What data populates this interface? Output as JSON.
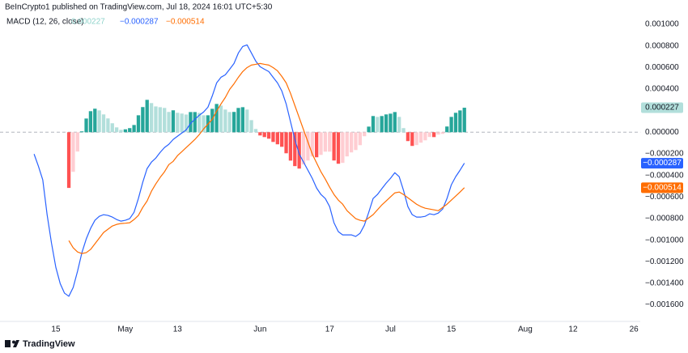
{
  "header": "BeInCrypto1 published on TradingView.com, Jul 18, 2024 16:01 UTC+5:30",
  "branding": "TradingView",
  "chart_data": {
    "type": "macd",
    "title": "MACD (12, 26, close)",
    "categories": [
      null,
      null,
      null,
      null,
      null,
      null,
      null,
      null,
      null,
      null,
      null,
      "15",
      null,
      null,
      null,
      null,
      null,
      null,
      null,
      null,
      null,
      null,
      null,
      null,
      null,
      null,
      null,
      "May",
      null,
      null,
      null,
      null,
      null,
      null,
      null,
      null,
      null,
      null,
      null,
      "13",
      null,
      null,
      null,
      null,
      null,
      null,
      null,
      null,
      null,
      null,
      null,
      null,
      null,
      null,
      null,
      null,
      null,
      null,
      "Jun",
      null,
      null,
      null,
      null,
      null,
      null,
      null,
      null,
      null,
      null,
      null,
      null,
      null,
      null,
      null,
      "17",
      null,
      null,
      null,
      null,
      null,
      null,
      null,
      null,
      null,
      null,
      null,
      null,
      null,
      "Jul",
      null,
      null,
      null,
      null,
      null,
      null,
      null,
      null,
      null,
      null,
      null,
      null,
      null,
      "15",
      null,
      null,
      null,
      null,
      null,
      null,
      null,
      null,
      null,
      null,
      null,
      null,
      null,
      null,
      null,
      null,
      "Aug",
      null,
      null,
      null,
      null,
      null,
      null,
      null,
      null,
      null,
      null,
      "12",
      null,
      null,
      null,
      null,
      null,
      null,
      null,
      null,
      null,
      null,
      null,
      null,
      null,
      "26",
      null
    ],
    "ylim": [
      -0.001738,
      0.001075
    ],
    "yticks": [
      {
        "value": 0.001,
        "label": "0.001000"
      },
      {
        "value": 0.0008,
        "label": "0.000800"
      },
      {
        "value": 0.0006,
        "label": "0.000600"
      },
      {
        "value": 0.0004,
        "label": "0.000400"
      },
      {
        "value": 0.0002,
        "label": "0.000200"
      },
      {
        "value": 0,
        "label": "0.000000"
      },
      {
        "value": -0.0002,
        "label": "−0.000200"
      },
      {
        "value": -0.0004,
        "label": "−0.000400"
      },
      {
        "value": -0.0006,
        "label": "−0.000600"
      },
      {
        "value": -0.0008,
        "label": "−0.000800"
      },
      {
        "value": -0.001,
        "label": "−0.001000"
      },
      {
        "value": -0.0012,
        "label": "−0.001200"
      },
      {
        "value": -0.0014,
        "label": "−0.001400"
      },
      {
        "value": -0.0016,
        "label": "−0.001600"
      }
    ],
    "grid": false,
    "series": [
      {
        "type": "bar",
        "colors": {
          "rise_above": "#26a69a",
          "fall_above": "#b2dfdb",
          "fall_below": "#ff5252",
          "rise_below": "#ffcdd2"
        },
        "values": [
          null,
          null,
          null,
          null,
          null,
          null,
          null,
          null,
          null,
          null,
          null,
          null,
          null,
          null,
          -0.000516,
          -0.000367,
          -0.000179,
          8e-06,
          0.000127,
          0.000195,
          0.000218,
          0.000202,
          0.000165,
          0.000128,
          8.3e-05,
          4.5e-05,
          2.2e-05,
          2.7e-05,
          3.8e-05,
          6.7e-05,
          0.000157,
          0.000233,
          0.0003,
          0.00027,
          0.000239,
          0.000232,
          0.000225,
          0.000188,
          0.000203,
          0.00018,
          0.000173,
          0.000164,
          0.000187,
          0.000187,
          0.000179,
          0.000157,
          0.000157,
          0.000217,
          0.000262,
          0.000247,
          0.00021,
          0.000187,
          0.000188,
          0.000225,
          0.000232,
          0.00021,
          0.000112,
          3e-05,
          -3e-05,
          -4.5e-05,
          -6e-05,
          -9e-05,
          -0.000112,
          -0.000135,
          -0.000195,
          -0.000263,
          -0.000314,
          -0.000337,
          -0.000299,
          -0.000262,
          -0.000225,
          -0.000232,
          -0.00021,
          -0.00018,
          -0.00018,
          -0.000262,
          -0.000292,
          -0.000284,
          -0.000224,
          -0.000187,
          -0.000165,
          -0.00012,
          -3.7e-05,
          5.2e-05,
          0.00015,
          0.000142,
          0.00015,
          0.000165,
          0.000172,
          0.000187,
          0.000142,
          3.8e-05,
          -8.2e-05,
          -0.000127,
          -0.000119,
          -9.7e-05,
          -7.5e-05,
          -4.4e-05,
          -4.5e-05,
          -2.2e-05,
          -1.5e-05,
          5.3e-05,
          0.000142,
          0.00018,
          0.000202,
          0.000227,
          null,
          null,
          null,
          null,
          null,
          null,
          null,
          null,
          null,
          null,
          null,
          null,
          null,
          null,
          null,
          null,
          null,
          null,
          null,
          null,
          null,
          null,
          null,
          null,
          null,
          null,
          null,
          null,
          null,
          null,
          null,
          null,
          null,
          null,
          null,
          null,
          null,
          null,
          null,
          null
        ]
      },
      {
        "type": "line",
        "color": "#2962ff",
        "values": [
          null,
          null,
          null,
          null,
          null,
          null,
          -0.000202,
          -0.000315,
          -0.000442,
          -0.000764,
          -0.001026,
          -0.001251,
          -0.001401,
          -0.001491,
          -0.00152,
          -0.001438,
          -0.001288,
          -0.001116,
          -0.000989,
          -0.000891,
          -0.000816,
          -0.000779,
          -0.000764,
          -0.000771,
          -0.000786,
          -0.000809,
          -0.000824,
          -0.000816,
          -0.000801,
          -0.000742,
          -0.000614,
          -0.000464,
          -0.000337,
          -0.000277,
          -0.00024,
          -0.000187,
          -0.000142,
          -0.000112,
          -6.7e-05,
          -3.7e-05,
          -7e-06,
          2.2e-05,
          8.2e-05,
          0.00012,
          0.000157,
          0.000187,
          0.000232,
          0.000337,
          0.000457,
          0.000509,
          0.000532,
          0.000584,
          0.000637,
          0.000734,
          0.000794,
          0.000809,
          0.000734,
          0.000659,
          0.000607,
          0.000584,
          0.000562,
          0.000509,
          0.000457,
          0.000382,
          0.000262,
          9.7e-05,
          -6.7e-05,
          -0.000202,
          -0.000277,
          -0.000352,
          -0.000427,
          -0.000517,
          -0.000577,
          -0.000614,
          -0.000689,
          -0.000839,
          -0.000921,
          -0.000951,
          -0.000951,
          -0.000951,
          -0.000966,
          -0.000936,
          -0.000861,
          -0.000742,
          -0.000614,
          -0.000577,
          -0.000524,
          -0.000472,
          -0.000427,
          -0.000375,
          -0.000412,
          -0.000539,
          -0.000689,
          -0.000764,
          -0.000786,
          -0.000786,
          -0.000779,
          -0.000756,
          -0.000764,
          -0.000749,
          -0.000712,
          -0.000614,
          -0.000487,
          -0.000412,
          -0.000352,
          -0.000287,
          null,
          null,
          null,
          null,
          null,
          null,
          null,
          null,
          null,
          null,
          null,
          null,
          null,
          null,
          null,
          null,
          null,
          null,
          null,
          null,
          null,
          null,
          null,
          null,
          null,
          null,
          null,
          null,
          null,
          null,
          null,
          null,
          null,
          null,
          null,
          null,
          null,
          null,
          null,
          null
        ],
        "value_labels": {
          "105": "−0.000287"
        }
      },
      {
        "type": "line",
        "color": "#ff6d00",
        "values": [
          null,
          null,
          null,
          null,
          null,
          null,
          null,
          null,
          null,
          null,
          null,
          null,
          null,
          null,
          -0.001004,
          -0.001071,
          -0.001109,
          -0.001124,
          -0.001116,
          -0.001086,
          -0.001034,
          -0.000981,
          -0.000929,
          -0.000899,
          -0.000869,
          -0.000854,
          -0.000846,
          -0.000843,
          -0.000839,
          -0.000809,
          -0.000771,
          -0.000697,
          -0.000637,
          -0.000547,
          -0.000479,
          -0.000419,
          -0.000367,
          -0.0003,
          -0.00027,
          -0.000217,
          -0.00018,
          -0.000142,
          -0.000105,
          -6.7e-05,
          -2.2e-05,
          3e-05,
          7.5e-05,
          0.00012,
          0.000195,
          0.000262,
          0.000322,
          0.000397,
          0.000449,
          0.000509,
          0.000562,
          0.000599,
          0.000622,
          0.000629,
          0.000637,
          0.000629,
          0.000622,
          0.000599,
          0.000569,
          0.000517,
          0.000457,
          0.00036,
          0.000247,
          0.000135,
          2.2e-05,
          -9e-05,
          -0.000202,
          -0.000285,
          -0.000367,
          -0.000434,
          -0.000509,
          -0.000577,
          -0.000629,
          -0.000667,
          -0.000727,
          -0.000764,
          -0.000801,
          -0.000816,
          -0.000824,
          -0.000794,
          -0.000764,
          -0.000719,
          -0.000674,
          -0.000637,
          -0.000599,
          -0.000562,
          -0.000554,
          -0.000577,
          -0.000607,
          -0.000637,
          -0.000667,
          -0.000689,
          -0.000704,
          -0.000712,
          -0.000719,
          -0.000727,
          -0.000697,
          -0.000667,
          -0.000629,
          -0.000592,
          -0.000554,
          -0.000514,
          null,
          null,
          null,
          null,
          null,
          null,
          null,
          null,
          null,
          null,
          null,
          null,
          null,
          null,
          null,
          null,
          null,
          null,
          null,
          null,
          null,
          null,
          null,
          null,
          null,
          null,
          null,
          null,
          null,
          null,
          null,
          null,
          null,
          null,
          null,
          null,
          null,
          null,
          null,
          null
        ],
        "value_labels": {
          "105": "−0.000514"
        }
      }
    ]
  }
}
